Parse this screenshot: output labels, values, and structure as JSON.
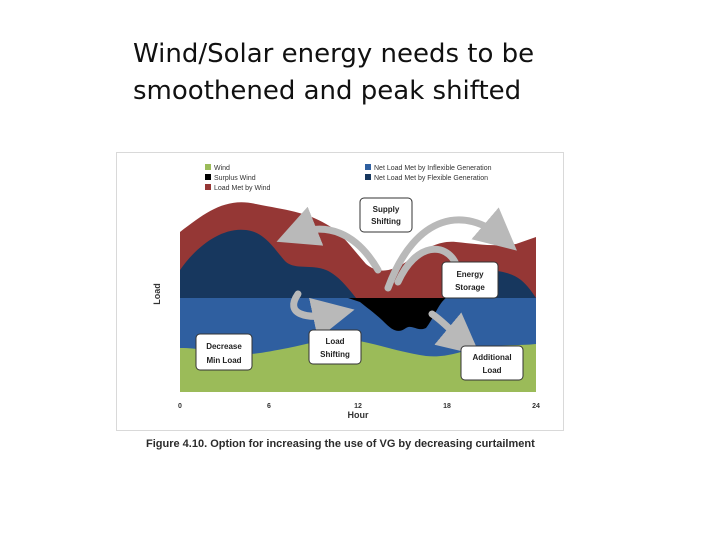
{
  "slide": {
    "title_lines": [
      "Wind/Solar energy needs to be",
      "smoothened and peak shifted"
    ]
  },
  "chart_data": {
    "type": "area",
    "xlabel": "Hour",
    "ylabel": "Load",
    "xlim": [
      0,
      24
    ],
    "x_ticks": [
      0,
      6,
      12,
      18,
      24
    ],
    "x_tick_labels": [
      "0",
      "6",
      "12",
      "18",
      "24"
    ],
    "legend": {
      "placement": "top",
      "entries": [
        {
          "label": "Wind",
          "color": "#9bbb59"
        },
        {
          "label": "Surplus Wind",
          "color": "#000000"
        },
        {
          "label": "Load Met by Wind",
          "color": "#953735"
        },
        {
          "label": "Net Load Met by Inflexible Generation",
          "color": "#2f5fa0"
        },
        {
          "label": "Net Load Met by Flexible Generation",
          "color": "#17375e"
        }
      ]
    },
    "callouts": [
      {
        "id": "supply-shifting",
        "lines": [
          "Supply",
          "Shifting"
        ]
      },
      {
        "id": "energy-storage",
        "lines": [
          "Energy",
          "Storage"
        ]
      },
      {
        "id": "load-shifting",
        "lines": [
          "Load",
          "Shifting"
        ]
      },
      {
        "id": "decrease-min-load",
        "lines": [
          "Decrease",
          "Min Load"
        ]
      },
      {
        "id": "additional-load",
        "lines": [
          "Additional",
          "Load"
        ]
      }
    ],
    "caption": "Figure 4.10. Option for increasing the use of VG by decreasing curtailment"
  }
}
